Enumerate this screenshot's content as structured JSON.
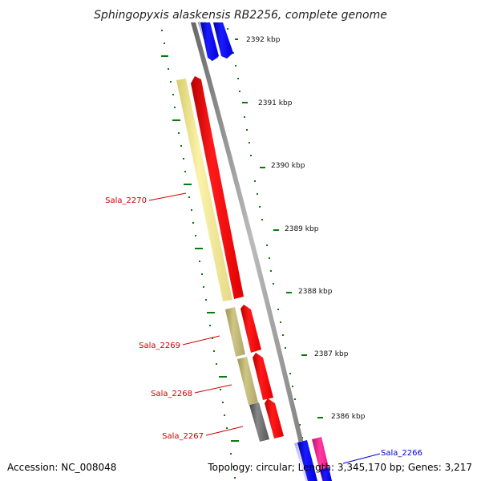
{
  "title": "Sphingopyxis alaskensis RB2256, complete genome",
  "scale_labels": [
    "2392 kbp",
    "2391 kbp",
    "2390 kbp",
    "2389 kbp",
    "2388 kbp",
    "2387 kbp",
    "2386 kbp"
  ],
  "genes": [
    {
      "label": "Sala_2270",
      "color": "#cc0000"
    },
    {
      "label": "Sala_2269",
      "color": "#cc0000"
    },
    {
      "label": "Sala_2268",
      "color": "#cc0000"
    },
    {
      "label": "Sala_2267",
      "color": "#cc0000"
    },
    {
      "label": "Sala_2266",
      "color": "#0000cc"
    }
  ],
  "footer": {
    "accession": "Accession: NC_008048",
    "topology": "Topology: circular; Length: 3,345,170 bp; Genes: 3,217"
  },
  "colors": {
    "backbone": "#888888",
    "tick_green": "#0a7a0a",
    "feature_red": "#ff0000",
    "feature_blue": "#0000ff",
    "feature_magenta": "#ff1493",
    "cog_yellow": "#f0e68c",
    "cog_khaki": "#bdb76b",
    "cog_gray": "#666666",
    "cog_lavender": "#c8c8ff"
  }
}
